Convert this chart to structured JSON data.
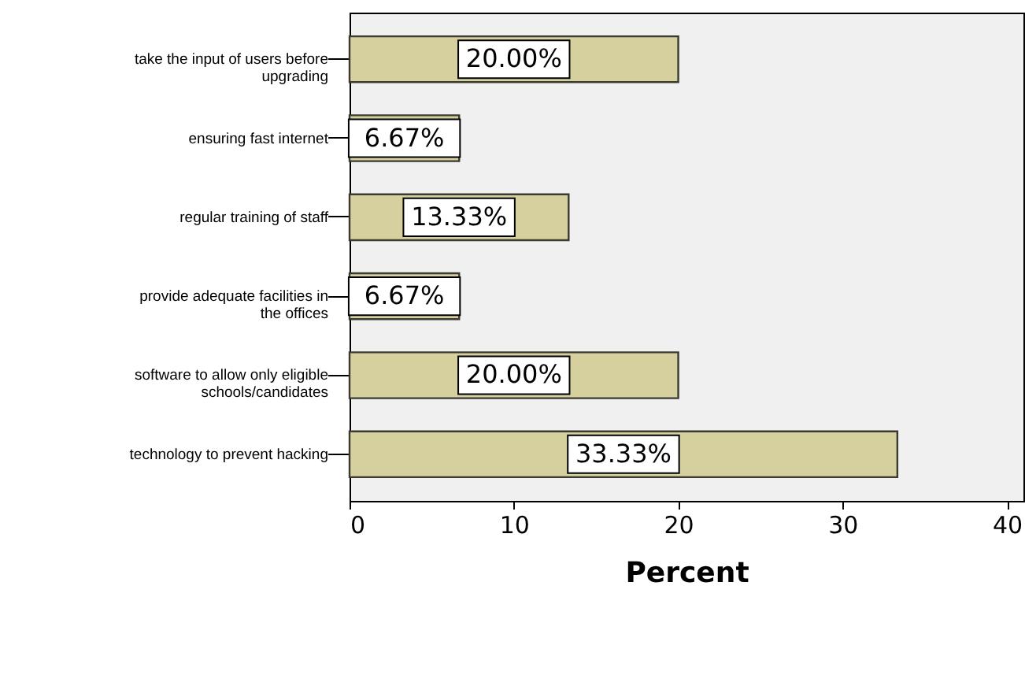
{
  "chart_data": {
    "type": "bar",
    "orientation": "horizontal",
    "xlabel": "Percent",
    "categories": [
      "take the input of users before upgrading",
      "ensuring fast internet",
      "regular training of staff",
      "provide adequate facilities in the offices",
      "software to allow only eligible schools/candidates",
      "technology to prevent hacking"
    ],
    "values": [
      20,
      6.67,
      13.33,
      6.67,
      20,
      33.33
    ],
    "value_labels": [
      "20.00%",
      "6.67%",
      "13.33%",
      "6.67%",
      "20.00%",
      "33.33%"
    ],
    "color": "#d6cf9e",
    "xlim": [
      0,
      41
    ],
    "xticks": [
      0,
      10,
      20,
      30,
      40
    ],
    "grid": false
  }
}
